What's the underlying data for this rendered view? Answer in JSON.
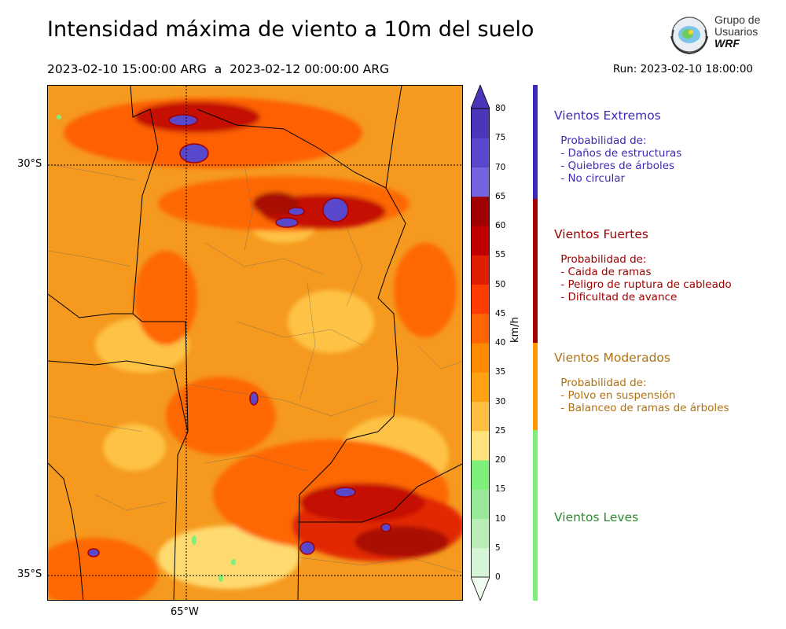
{
  "title": "Intensidad máxima de viento a 10m del suelo",
  "period": "2023-02-10 15:00:00 ARG  a  2023-02-12 00:00:00 ARG",
  "run": "Run: 2023-02-10 18:00:00",
  "logo": {
    "line1": "Grupo de",
    "line2": "Usuarios",
    "line3": "WRF"
  },
  "map": {
    "lat_labels": [
      "30°S",
      "35°S"
    ],
    "lon_labels": [
      "65°W"
    ],
    "background_color": "#f59a1e"
  },
  "colorbar": {
    "unit": "km/h",
    "ticks": [
      "0",
      "5",
      "10",
      "15",
      "20",
      "25",
      "30",
      "35",
      "40",
      "45",
      "50",
      "55",
      "60",
      "65",
      "70",
      "75",
      "80"
    ],
    "colors": [
      "#f0fcf0",
      "#d6f5d6",
      "#b8eeb5",
      "#9ae89a",
      "#7df07b",
      "#ffe27a",
      "#ffbe3f",
      "#ffa214",
      "#ff8a00",
      "#ff6400",
      "#ff3c00",
      "#e01e00",
      "#c00000",
      "#a00000",
      "#7464de",
      "#5a48cc",
      "#4a36b8"
    ]
  },
  "categories": [
    {
      "title": "Vientos Extremos",
      "color": "#3b2ab4",
      "desc": " Probabilidad de:\n - Daños de estructuras\n - Quiebres de árboles\n - No circular"
    },
    {
      "title": "Vientos Fuertes",
      "color": "#a00000",
      "desc": " Probabilidad de:\n - Caida de ramas\n - Peligro de ruptura de cableado\n - Dificultad de avance"
    },
    {
      "title": "Vientos Moderados",
      "color": "#b07010",
      "desc": " Probabilidad de:\n - Polvo en suspensión\n - Balanceo de ramas de árboles"
    },
    {
      "title": "Vientos Leves",
      "color": "#2e8a2e",
      "desc": ""
    }
  ]
}
